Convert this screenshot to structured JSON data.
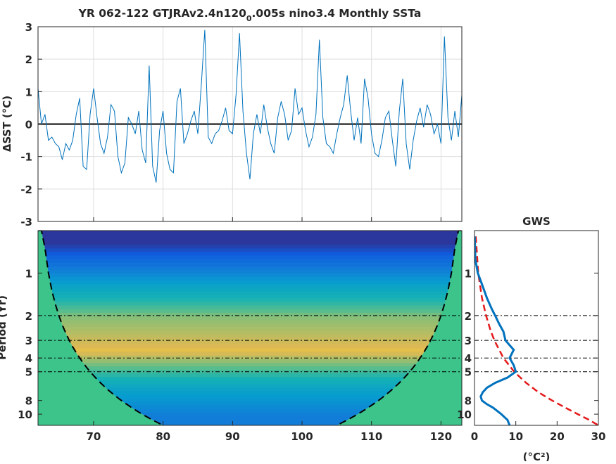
{
  "title": {
    "prefix": "YR 062-122 GTJRAv2.4n120",
    "subscript": "0",
    "suffix": ".005s nino3.4 Monthly SSTa"
  },
  "colors": {
    "series": "#0072bd",
    "gws": "#0072bd",
    "red_noise": "#e41a1c",
    "coi_fill": "#3cc48a",
    "contour": "#000000"
  },
  "chart_data": [
    {
      "type": "line",
      "title": "YR 062-122 GTJRAv2.4n120_0.005s nino3.4 Monthly SSTa",
      "ylabel": "ΔSST (°C)",
      "xlim": [
        62,
        123
      ],
      "ylim": [
        -3,
        3
      ],
      "yticks": [
        -3,
        -2,
        -1,
        0,
        1,
        2,
        3
      ],
      "xticks": [
        70,
        80,
        90,
        100,
        110,
        120
      ],
      "grid": true,
      "zero_line": true,
      "x": [
        62.0,
        62.5,
        63.0,
        63.5,
        64.0,
        64.5,
        65.0,
        65.5,
        66.0,
        66.5,
        67.0,
        67.5,
        68.0,
        68.5,
        69.0,
        69.5,
        70.0,
        70.5,
        71.0,
        71.5,
        72.0,
        72.5,
        73.0,
        73.5,
        74.0,
        74.5,
        75.0,
        75.5,
        76.0,
        76.5,
        77.0,
        77.5,
        78.0,
        78.5,
        79.0,
        79.5,
        80.0,
        80.5,
        81.0,
        81.5,
        82.0,
        82.5,
        83.0,
        83.5,
        84.0,
        84.5,
        85.0,
        85.5,
        86.0,
        86.5,
        87.0,
        87.5,
        88.0,
        88.5,
        89.0,
        89.5,
        90.0,
        90.5,
        91.0,
        91.5,
        92.0,
        92.5,
        93.0,
        93.5,
        94.0,
        94.5,
        95.0,
        95.5,
        96.0,
        96.5,
        97.0,
        97.5,
        98.0,
        98.5,
        99.0,
        99.5,
        100.0,
        100.5,
        101.0,
        101.5,
        102.0,
        102.5,
        103.0,
        103.5,
        104.0,
        104.5,
        105.0,
        105.5,
        106.0,
        106.5,
        107.0,
        107.5,
        108.0,
        108.5,
        109.0,
        109.5,
        110.0,
        110.5,
        111.0,
        111.5,
        112.0,
        112.5,
        113.0,
        113.5,
        114.0,
        114.5,
        115.0,
        115.5,
        116.0,
        116.5,
        117.0,
        117.5,
        118.0,
        118.5,
        119.0,
        119.5,
        120.0,
        120.5,
        121.0,
        121.5,
        122.0,
        122.5,
        123.0
      ],
      "y": [
        1.1,
        0.0,
        0.3,
        -0.5,
        -0.4,
        -0.6,
        -0.7,
        -1.1,
        -0.6,
        -0.8,
        -0.5,
        0.3,
        0.8,
        -1.3,
        -1.4,
        0.3,
        1.1,
        0.2,
        -0.6,
        -0.9,
        -0.4,
        0.6,
        0.4,
        -1.0,
        -1.5,
        -1.2,
        0.2,
        0.0,
        -0.3,
        0.4,
        -0.8,
        -1.2,
        1.8,
        -1.3,
        -1.8,
        -0.2,
        0.4,
        -0.9,
        -1.4,
        -1.5,
        0.7,
        1.1,
        -0.6,
        -0.3,
        0.1,
        0.4,
        -0.3,
        1.2,
        2.9,
        -0.4,
        -0.6,
        -0.3,
        -0.2,
        0.1,
        0.5,
        -0.2,
        -0.3,
        0.9,
        2.8,
        0.4,
        -0.9,
        -1.7,
        -0.3,
        0.3,
        -0.3,
        0.6,
        -0.1,
        -0.6,
        -0.9,
        0.2,
        0.7,
        0.3,
        -0.5,
        -0.2,
        1.1,
        0.3,
        0.5,
        -0.2,
        -0.7,
        -0.4,
        0.3,
        2.6,
        0.2,
        -0.6,
        -0.7,
        -0.9,
        -0.3,
        0.2,
        0.6,
        1.5,
        0.4,
        -0.5,
        0.2,
        -0.6,
        1.4,
        0.8,
        -0.3,
        -0.9,
        -1.0,
        -0.5,
        0.2,
        0.4,
        -0.5,
        -1.3,
        0.4,
        1.4,
        -0.6,
        -1.4,
        -0.5,
        0.1,
        0.5,
        -0.1,
        0.6,
        0.3,
        -0.3,
        0.0,
        -0.6,
        2.7,
        0.2,
        -0.5,
        0.4,
        -0.4,
        0.9
      ]
    },
    {
      "type": "heatmap",
      "ylabel": "Period (Yr)",
      "xlim": [
        62,
        123
      ],
      "ylim": [
        0.5,
        12
      ],
      "yscale": "log",
      "yticks": [
        1,
        2,
        3,
        4,
        5,
        8,
        10
      ],
      "xticks": [
        70,
        80,
        90,
        100,
        110,
        120
      ],
      "reference_periods": [
        2,
        3,
        4,
        5
      ],
      "bands": [
        {
          "period": 0.6,
          "level": 0.05
        },
        {
          "period": 0.8,
          "level": 0.3
        },
        {
          "period": 1.2,
          "level": 0.6
        },
        {
          "period": 2.0,
          "level": 0.85
        },
        {
          "period": 3.5,
          "level": 0.95
        },
        {
          "period": 6.5,
          "level": 0.6
        },
        {
          "period": 10.0,
          "level": 0.4
        }
      ],
      "cone_of_influence": true
    },
    {
      "type": "line",
      "title": "GWS",
      "xlabel": "(°C²)",
      "xlim": [
        0,
        30
      ],
      "xticks": [
        0,
        10,
        20,
        30
      ],
      "ylim": [
        0.5,
        12
      ],
      "yscale": "log",
      "yticks": [
        1,
        2,
        3,
        4,
        5,
        8,
        10
      ],
      "reference_periods": [
        2,
        3,
        4,
        5
      ],
      "series": [
        {
          "period": [
            0.55,
            0.8,
            1.0,
            1.2,
            1.5,
            1.8,
            2.0,
            2.3,
            2.6,
            3.0,
            3.5,
            4.0,
            4.5,
            5.0,
            5.5,
            6.0,
            6.5,
            7.0,
            7.5,
            8.0,
            8.5,
            9.0,
            10.0,
            11.0,
            12.0
          ],
          "power": [
            0.05,
            0.2,
            0.8,
            1.8,
            3.0,
            4.2,
            5.0,
            6.0,
            7.0,
            7.5,
            9.5,
            8.5,
            9.5,
            10.0,
            8.0,
            5.0,
            3.0,
            2.0,
            1.5,
            1.8,
            3.0,
            4.5,
            6.5,
            8.0,
            8.5
          ]
        },
        {
          "period": [
            0.55,
            1.0,
            1.5,
            2.0,
            2.5,
            3.0,
            4.0,
            5.0,
            6.0,
            7.0,
            8.0,
            9.0,
            10.0,
            11.0,
            12.0
          ],
          "power": [
            0.3,
            0.9,
            1.8,
            2.8,
            3.8,
            4.8,
            7.0,
            9.6,
            12.5,
            15.5,
            18.8,
            22.0,
            25.0,
            27.8,
            30.0
          ]
        }
      ]
    }
  ]
}
